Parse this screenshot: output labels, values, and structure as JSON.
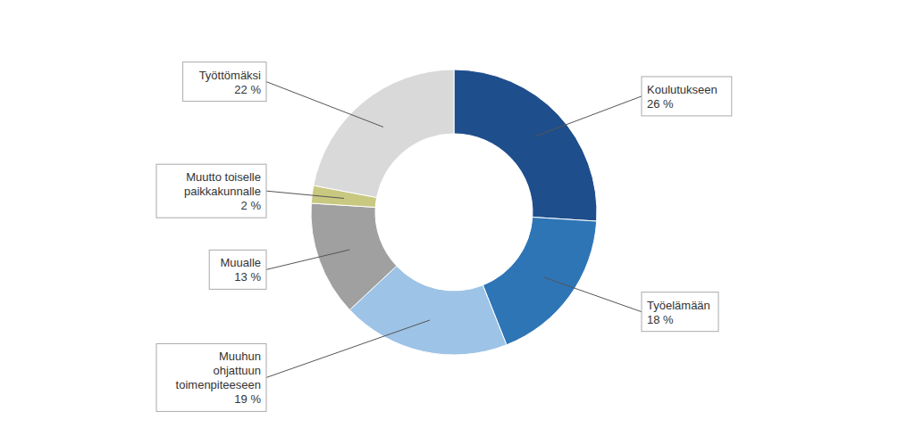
{
  "chart_data": {
    "type": "pie",
    "categories": [
      "Koulutukseen\n26 %",
      "Työelämään\n18 %",
      "Muuhun\nohjattuun\ntoimenpiteeseen\n19 %",
      "Muualle\n13 %",
      "Muutto toiselle\npaikkakunnalle\n2 %",
      "Työttömäksi\n22 %"
    ],
    "values": [
      26,
      18,
      19,
      13,
      2,
      22
    ],
    "colors": [
      "#1f4e8c",
      "#2e75b6",
      "#9dc3e6",
      "#a0a0a0",
      "#c8c880",
      "#d9d9d9"
    ]
  }
}
